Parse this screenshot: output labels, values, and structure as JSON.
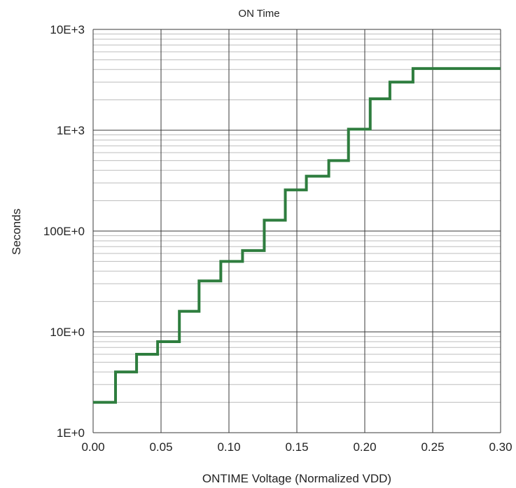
{
  "chart_data": {
    "type": "line",
    "title": "ON Time",
    "xlabel": "ONTIME Voltage (Normalized VDD)",
    "ylabel": "Seconds",
    "xlim": [
      0,
      0.3
    ],
    "ylim": [
      1,
      10000
    ],
    "y_scale": "log",
    "grid": true,
    "x_ticks": [
      0,
      0.05,
      0.1,
      0.15,
      0.2,
      0.25,
      0.3
    ],
    "x_tick_labels": [
      "0.00",
      "0.05",
      "0.10",
      "0.15",
      "0.20",
      "0.25",
      "0.30"
    ],
    "y_ticks": [
      1,
      10,
      100,
      1000,
      10000
    ],
    "y_tick_labels": [
      "1E+0",
      "10E+0",
      "100E+0",
      "1E+3",
      "10E+3"
    ],
    "series": [
      {
        "color": "#2e7d3e",
        "step": true,
        "x": [
          0,
          0.0165,
          0.032,
          0.0475,
          0.0635,
          0.078,
          0.094,
          0.11,
          0.126,
          0.1415,
          0.157,
          0.1735,
          0.188,
          0.204,
          0.2185,
          0.2355,
          0.3
        ],
        "values": [
          2,
          4,
          6,
          8,
          16,
          32,
          50,
          64,
          128,
          256,
          350,
          500,
          1024,
          2048,
          3000,
          4096,
          4096
        ]
      }
    ]
  }
}
